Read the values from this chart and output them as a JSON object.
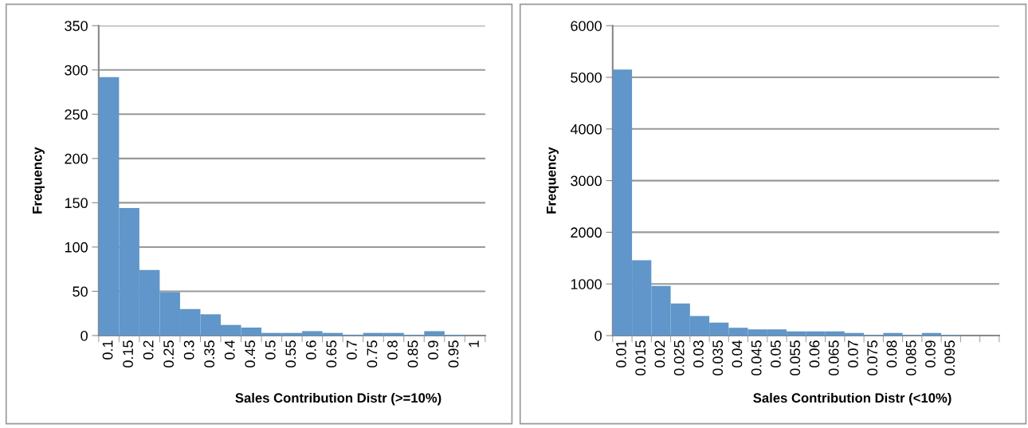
{
  "chart_data": [
    {
      "type": "bar",
      "xlabel": "Sales Contribution Distr (>=10%)",
      "ylabel": "Frequency",
      "color": "#6096c9",
      "grid": "y",
      "categories": [
        "0.1",
        "0.15",
        "0.2",
        "0.25",
        "0.3",
        "0.35",
        "0.4",
        "0.45",
        "0.5",
        "0.55",
        "0.6",
        "0.65",
        "0.7",
        "0.75",
        "0.8",
        "0.85",
        "0.9",
        "0.95",
        "1"
      ],
      "values": [
        292,
        144,
        74,
        49,
        30,
        24,
        12,
        9,
        3,
        3,
        5,
        3,
        1,
        3,
        3,
        1,
        5,
        1,
        0
      ],
      "ylim": [
        0,
        350
      ],
      "yticks": [
        0,
        50,
        100,
        150,
        200,
        250,
        300,
        350
      ]
    },
    {
      "type": "bar",
      "xlabel": "Sales Contribution Distr (<10%)",
      "ylabel": "Frequency",
      "color": "#6096c9",
      "grid": "y",
      "categories": [
        "0.01",
        "0.015",
        "0.02",
        "0.025",
        "0.03",
        "0.035",
        "0.04",
        "0.045",
        "0.05",
        "0.055",
        "0.06",
        "0.065",
        "0.07",
        "0.075",
        "0.08",
        "0.085",
        "0.09",
        "0.095",
        null,
        null
      ],
      "values": [
        5150,
        1460,
        960,
        620,
        380,
        250,
        150,
        120,
        120,
        80,
        80,
        80,
        50,
        10,
        50,
        10,
        50,
        10,
        0,
        0
      ],
      "ylim": [
        0,
        6000
      ],
      "yticks": [
        0,
        1000,
        2000,
        3000,
        4000,
        5000,
        6000
      ]
    }
  ]
}
